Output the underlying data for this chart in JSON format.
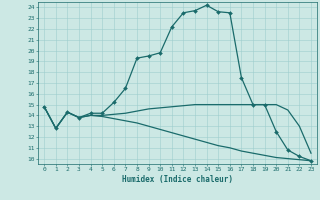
{
  "xlabel": "Humidex (Indice chaleur)",
  "xlim": [
    -0.5,
    23.5
  ],
  "ylim": [
    9.5,
    24.5
  ],
  "yticks": [
    10,
    11,
    12,
    13,
    14,
    15,
    16,
    17,
    18,
    19,
    20,
    21,
    22,
    23,
    24
  ],
  "xticks": [
    0,
    1,
    2,
    3,
    4,
    5,
    6,
    7,
    8,
    9,
    10,
    11,
    12,
    13,
    14,
    15,
    16,
    17,
    18,
    19,
    20,
    21,
    22,
    23
  ],
  "bg_color": "#cce8e4",
  "grid_color": "#9ecece",
  "line_color": "#1a6b6b",
  "lines": [
    {
      "x": [
        0,
        1,
        2,
        3,
        4,
        5,
        6,
        7,
        8,
        9,
        10,
        11,
        12,
        13,
        14,
        15,
        16,
        17,
        18,
        19,
        20,
        21,
        22,
        23
      ],
      "y": [
        14.8,
        12.8,
        14.3,
        13.8,
        14.2,
        14.2,
        15.2,
        16.5,
        19.3,
        19.5,
        19.8,
        22.2,
        23.5,
        23.7,
        24.2,
        23.6,
        23.5,
        17.5,
        15.0,
        15.0,
        12.5,
        10.8,
        10.2,
        9.8
      ],
      "marker": "D",
      "markersize": 2.0,
      "lw": 0.9
    },
    {
      "x": [
        0,
        1,
        2,
        3,
        4,
        5,
        6,
        7,
        8,
        9,
        10,
        11,
        12,
        13,
        14,
        15,
        16,
        17,
        18,
        19,
        20,
        21,
        22,
        23
      ],
      "y": [
        14.8,
        12.8,
        14.3,
        13.8,
        14.0,
        14.0,
        14.1,
        14.2,
        14.4,
        14.6,
        14.7,
        14.8,
        14.9,
        15.0,
        15.0,
        15.0,
        15.0,
        15.0,
        15.0,
        15.0,
        15.0,
        14.5,
        13.0,
        10.5
      ],
      "marker": null,
      "markersize": 0,
      "lw": 0.9
    },
    {
      "x": [
        0,
        1,
        2,
        3,
        4,
        5,
        6,
        7,
        8,
        9,
        10,
        11,
        12,
        13,
        14,
        15,
        16,
        17,
        18,
        19,
        20,
        21,
        22,
        23
      ],
      "y": [
        14.8,
        12.8,
        14.3,
        13.8,
        14.0,
        13.9,
        13.7,
        13.5,
        13.3,
        13.0,
        12.7,
        12.4,
        12.1,
        11.8,
        11.5,
        11.2,
        11.0,
        10.7,
        10.5,
        10.3,
        10.1,
        10.0,
        9.9,
        9.8
      ],
      "marker": null,
      "markersize": 0,
      "lw": 0.9
    }
  ]
}
